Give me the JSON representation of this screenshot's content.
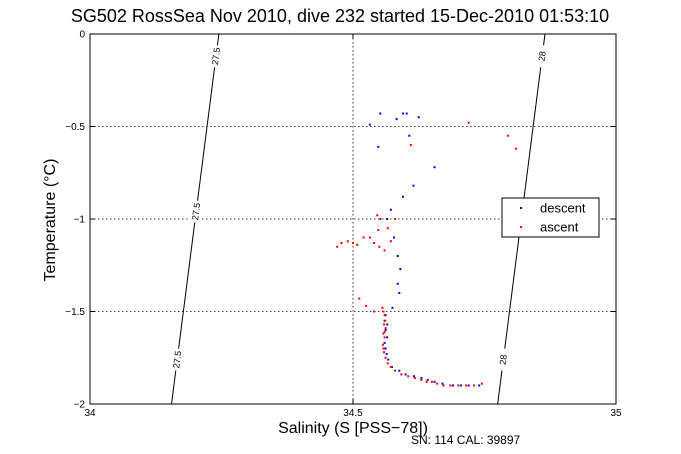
{
  "chart_data": {
    "type": "scatter",
    "title": "SG502 RossSea Nov 2010, dive 232 started 15-Dec-2010 01:53:10",
    "xlabel": "Salinity (S [PSS−78])",
    "ylabel": "Temperature (°C)",
    "xlim": [
      34,
      35
    ],
    "ylim": [
      -2,
      0
    ],
    "xticks": [
      34,
      34.5,
      35
    ],
    "xtick_labels": [
      "34",
      "34.5",
      "35"
    ],
    "yticks": [
      -2,
      -1.5,
      -1,
      -0.5,
      0
    ],
    "ytick_labels": [
      "−2",
      "−1.5",
      "−1",
      "−0.5",
      "0"
    ],
    "grid": true,
    "grid_style": "dotted",
    "legend_position": "right",
    "isopycnals": [
      {
        "label": "27.5",
        "points": [
          [
            34.155,
            -2
          ],
          [
            34.245,
            0
          ]
        ]
      },
      {
        "label": "28",
        "points": [
          [
            34.775,
            -2
          ],
          [
            34.865,
            0
          ]
        ]
      }
    ],
    "series": [
      {
        "name": "descent",
        "color": "#0000ff",
        "points": [
          [
            34.532,
            -0.49
          ],
          [
            34.552,
            -0.43
          ],
          [
            34.583,
            -0.46
          ],
          [
            34.595,
            -0.43
          ],
          [
            34.602,
            -0.43
          ],
          [
            34.625,
            -0.45
          ],
          [
            34.607,
            -0.55
          ],
          [
            34.548,
            -0.61
          ],
          [
            34.655,
            -0.72
          ],
          [
            34.615,
            -0.82
          ],
          [
            34.595,
            -0.88
          ],
          [
            34.572,
            -0.95
          ],
          [
            34.565,
            -1.0
          ],
          [
            34.578,
            -1.1
          ],
          [
            34.585,
            -1.2
          ],
          [
            34.59,
            -1.27
          ],
          [
            34.585,
            -1.35
          ],
          [
            34.588,
            -1.4
          ],
          [
            34.575,
            -1.48
          ],
          [
            34.562,
            -1.52
          ],
          [
            34.56,
            -1.55
          ],
          [
            34.565,
            -1.57
          ],
          [
            34.562,
            -1.6
          ],
          [
            34.565,
            -1.64
          ],
          [
            34.56,
            -1.67
          ],
          [
            34.562,
            -1.7
          ],
          [
            34.564,
            -1.73
          ],
          [
            34.567,
            -1.76
          ],
          [
            34.574,
            -1.8
          ],
          [
            34.588,
            -1.82
          ],
          [
            34.6,
            -1.84
          ],
          [
            34.616,
            -1.85
          ],
          [
            34.63,
            -1.86
          ],
          [
            34.642,
            -1.87
          ],
          [
            34.655,
            -1.88
          ],
          [
            34.67,
            -1.89
          ],
          [
            34.69,
            -1.9
          ],
          [
            34.705,
            -1.9
          ],
          [
            34.72,
            -1.9
          ],
          [
            34.74,
            -1.9
          ]
        ]
      },
      {
        "name": "ascent",
        "color": "#ff0000",
        "points": [
          [
            34.72,
            -0.48
          ],
          [
            34.795,
            -0.55
          ],
          [
            34.81,
            -0.62
          ],
          [
            34.61,
            -0.6
          ],
          [
            34.47,
            -1.15
          ],
          [
            34.478,
            -1.13
          ],
          [
            34.49,
            -1.12
          ],
          [
            34.5,
            -1.13
          ],
          [
            34.508,
            -1.14
          ],
          [
            34.52,
            -1.1
          ],
          [
            34.532,
            -1.1
          ],
          [
            34.54,
            -1.13
          ],
          [
            34.55,
            -1.15
          ],
          [
            34.56,
            -1.17
          ],
          [
            34.548,
            -1.06
          ],
          [
            34.546,
            -0.98
          ],
          [
            34.552,
            -1.0
          ],
          [
            34.566,
            -1.05
          ],
          [
            34.58,
            -1.0
          ],
          [
            34.572,
            -1.12
          ],
          [
            34.512,
            -1.43
          ],
          [
            34.525,
            -1.47
          ],
          [
            34.54,
            -1.5
          ],
          [
            34.556,
            -1.48
          ],
          [
            34.558,
            -1.5
          ],
          [
            34.56,
            -1.52
          ],
          [
            34.561,
            -1.55
          ],
          [
            34.559,
            -1.57
          ],
          [
            34.562,
            -1.59
          ],
          [
            34.56,
            -1.61
          ],
          [
            34.558,
            -1.62
          ],
          [
            34.56,
            -1.64
          ],
          [
            34.557,
            -1.68
          ],
          [
            34.558,
            -1.7
          ],
          [
            34.559,
            -1.72
          ],
          [
            34.562,
            -1.75
          ],
          [
            34.566,
            -1.78
          ],
          [
            34.572,
            -1.8
          ],
          [
            34.58,
            -1.82
          ],
          [
            34.592,
            -1.84
          ],
          [
            34.605,
            -1.85
          ],
          [
            34.618,
            -1.86
          ],
          [
            34.63,
            -1.87
          ],
          [
            34.64,
            -1.88
          ],
          [
            34.65,
            -1.88
          ],
          [
            34.66,
            -1.89
          ],
          [
            34.672,
            -1.9
          ],
          [
            34.685,
            -1.9
          ],
          [
            34.7,
            -1.9
          ],
          [
            34.715,
            -1.9
          ],
          [
            34.73,
            -1.9
          ],
          [
            34.745,
            -1.89
          ]
        ]
      }
    ]
  },
  "footer": {
    "sn_text": "SN: 114  CAL: 39897"
  }
}
